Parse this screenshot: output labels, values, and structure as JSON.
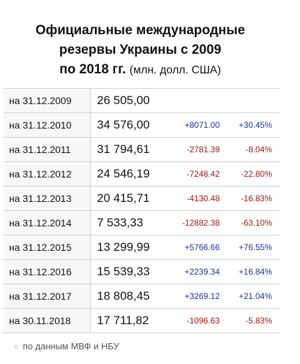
{
  "title": {
    "lines": [
      "Официальные международные",
      "резервы Украины с 2009",
      "по 2018 гг."
    ],
    "unit": "(млн. долл. США)"
  },
  "table": {
    "rows": [
      [
        "на 31.12.2009",
        "26 505,00",
        "",
        ""
      ],
      [
        "на 31.12.2010",
        "34 576,00",
        "+8071.00",
        "+30.45%"
      ],
      [
        "на 31.12.2011",
        "31 794,61",
        "-2781.39",
        "-8.04%"
      ],
      [
        "на 31.12.2012",
        "24 546,19",
        "-7248.42",
        "-22.80%"
      ],
      [
        "на 31.12.2013",
        "20 415,71",
        "-4130.48",
        "-16.83%"
      ],
      [
        "на 31.12.2014",
        "7 533,33",
        "-12882.38",
        "-63.10%"
      ],
      [
        "на 31.12.2015",
        "13 299,99",
        "+5766.66",
        "+76.55%"
      ],
      [
        "на 31.12.2016",
        "15 539,33",
        "+2239.34",
        "+16.84%"
      ],
      [
        "на 31.12.2017",
        "18 808,45",
        "+3269.12",
        "+21.04%"
      ],
      [
        "на 30.11.2018",
        "17 711,82",
        "-1096.63",
        "-5.83%"
      ]
    ]
  },
  "source": "по данным МВФ и НБУ"
}
